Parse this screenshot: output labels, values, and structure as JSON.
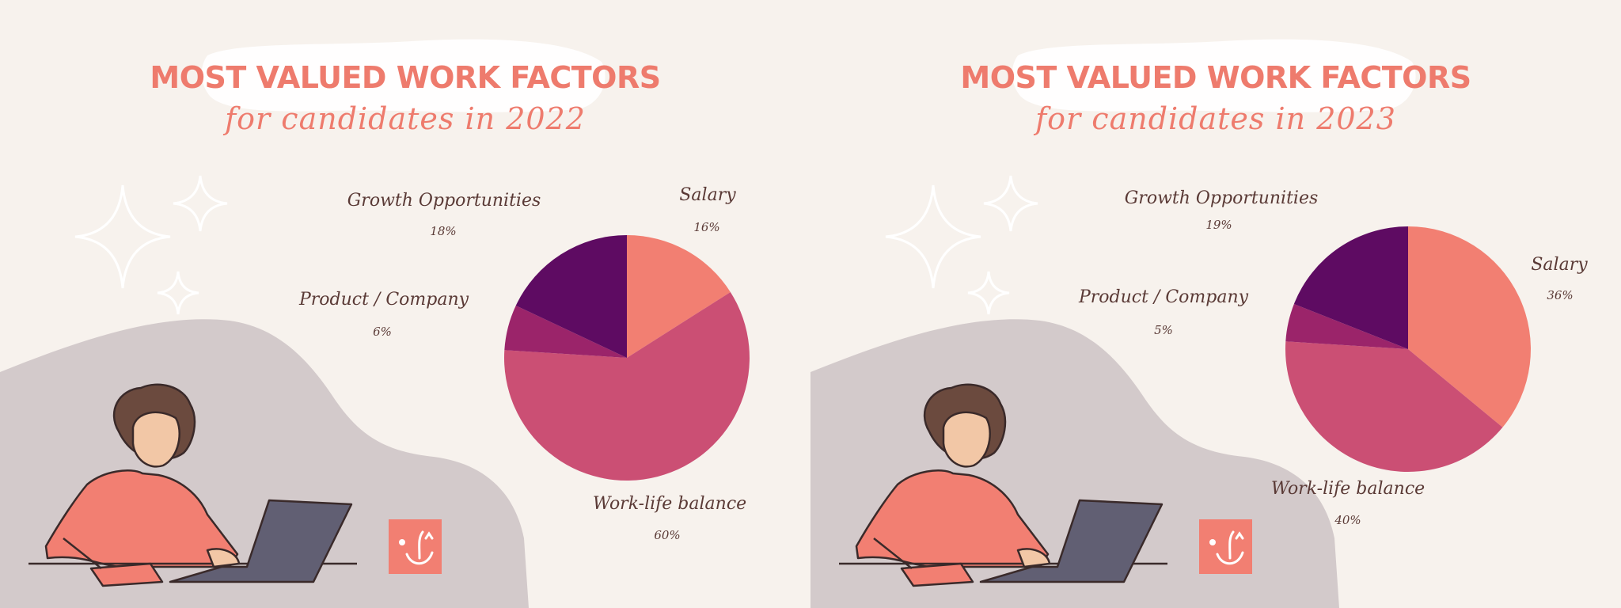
{
  "colors": {
    "background": "#f7f2ed",
    "title": "#ee7b6d",
    "label_text": "#5a3a36",
    "salary": "#f27f72",
    "work_life_balance": "#cb4f74",
    "product_company": "#9b246a",
    "growth_opportunities": "#5e0b62",
    "blob": "#d3cacb"
  },
  "chart_data": [
    {
      "type": "pie",
      "title": "MOST VALUED WORK FACTORS",
      "subtitle": "for candidates in 2022",
      "slices": [
        {
          "label": "Salary",
          "value": 16,
          "display": "16%",
          "color": "#f27f72"
        },
        {
          "label": "Work-life balance",
          "value": 60,
          "display": "60%",
          "color": "#cb4f74"
        },
        {
          "label": "Product / Company",
          "value": 6,
          "display": "6%",
          "color": "#9b246a"
        },
        {
          "label": "Growth Opportunities",
          "value": 18,
          "display": "18%",
          "color": "#5e0b62"
        }
      ]
    },
    {
      "type": "pie",
      "title": "MOST VALUED WORK FACTORS",
      "subtitle": "for candidates in 2023",
      "slices": [
        {
          "label": "Salary",
          "value": 36,
          "display": "36%",
          "color": "#f27f72"
        },
        {
          "label": "Work-life balance",
          "value": 40,
          "display": "40%",
          "color": "#cb4f74"
        },
        {
          "label": "Product / Company",
          "value": 5,
          "display": "5%",
          "color": "#9b246a"
        },
        {
          "label": "Growth Opportunities",
          "value": 19,
          "display": "19%",
          "color": "#5e0b62"
        }
      ]
    }
  ]
}
